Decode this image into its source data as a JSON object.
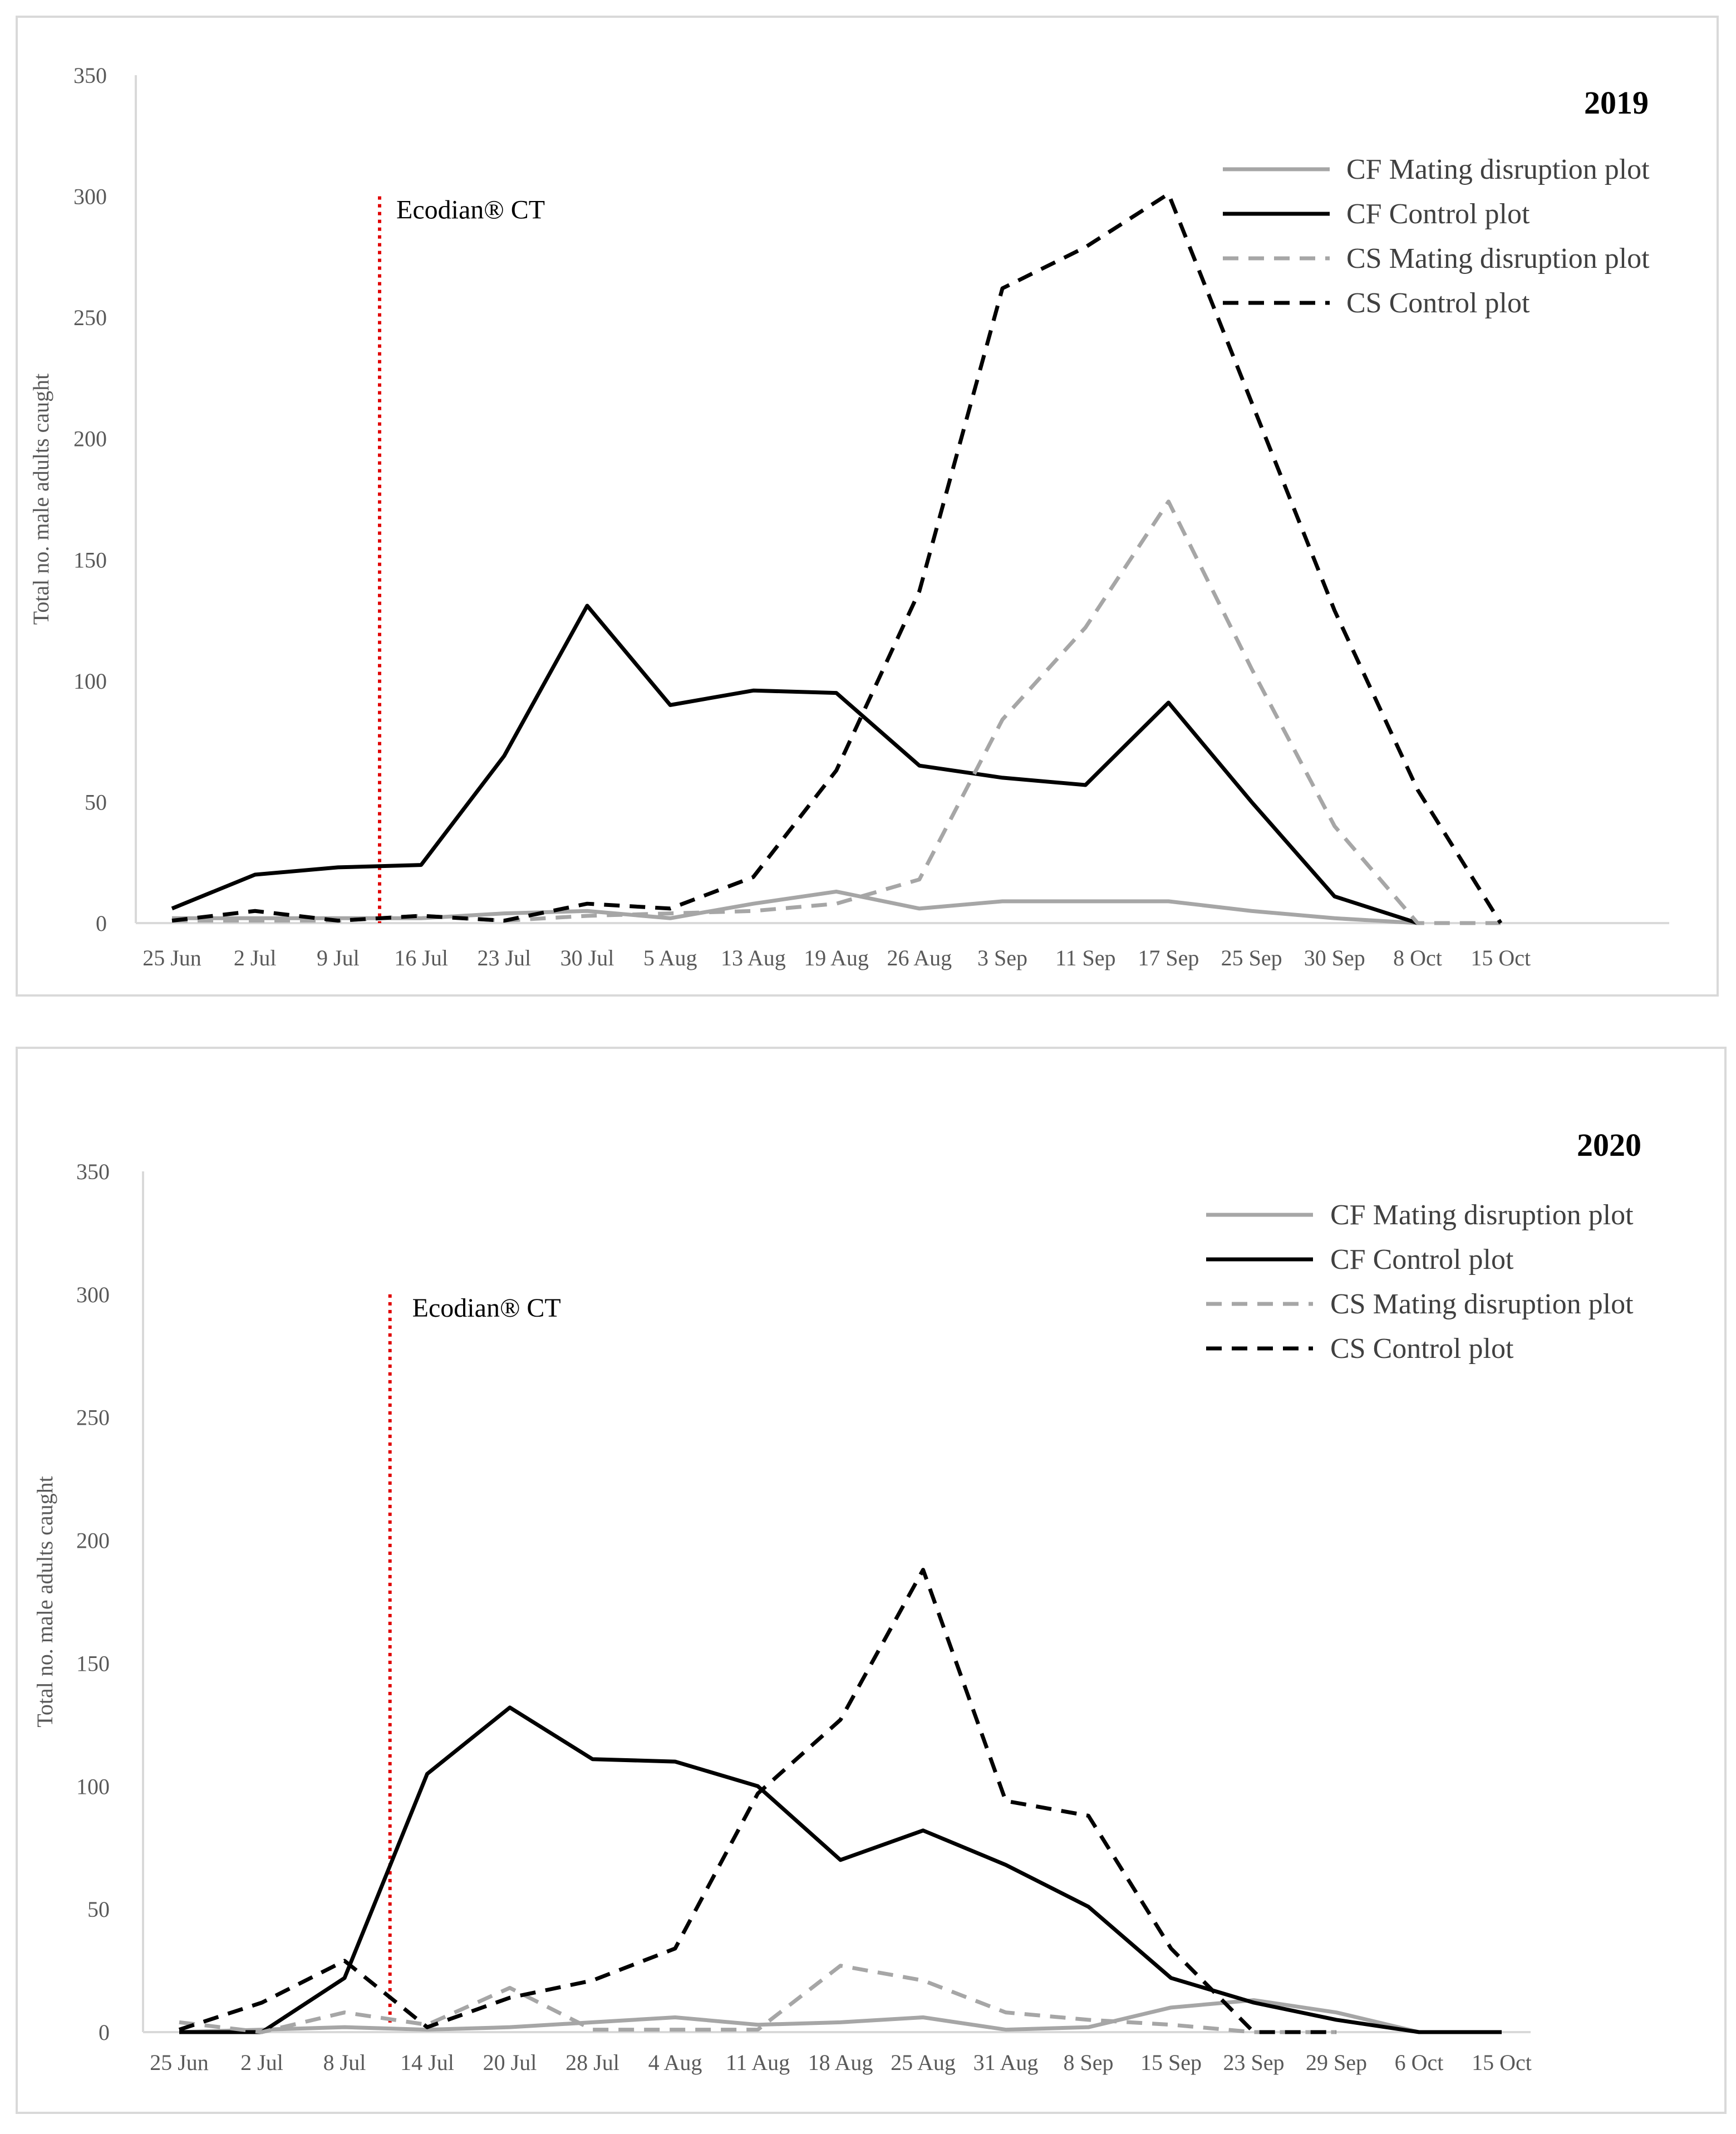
{
  "colors": {
    "cf_md": "#a6a6a6",
    "cf_ctrl": "#000000",
    "cs_md": "#a6a6a6",
    "cs_ctrl": "#000000",
    "marker": "#e00000",
    "axis": "#d9d9d9"
  },
  "chart_data": [
    {
      "type": "line",
      "title": "2019",
      "xlabel": "",
      "ylabel": "Total no. male adults caught",
      "ylim": [
        0,
        350
      ],
      "yticks": [
        "0",
        "50",
        "100",
        "150",
        "200",
        "250",
        "300",
        "350"
      ],
      "categories": [
        "25 Jun",
        "2 Jul",
        "9 Jul",
        "16 Jul",
        "23 Jul",
        "30 Jul",
        "5 Aug",
        "13 Aug",
        "19 Aug",
        "26 Aug",
        "3 Sep",
        "11 Sep",
        "17 Sep",
        "25 Sep",
        "30 Sep",
        "8 Oct",
        "15 Oct"
      ],
      "annotation": {
        "label": "Ecodian® CT",
        "x_position": 2.5,
        "y_top": 300
      },
      "legend": "top-right",
      "series": [
        {
          "name": "CF Mating disruption plot",
          "style": "solid-gray",
          "values": [
            2,
            2,
            2,
            2,
            4,
            5,
            2,
            8,
            13,
            6,
            9,
            9,
            9,
            5,
            2,
            0,
            null
          ]
        },
        {
          "name": "CF Control plot",
          "style": "solid-black",
          "values": [
            6,
            20,
            23,
            24,
            69,
            131,
            90,
            96,
            95,
            65,
            60,
            57,
            91,
            50,
            11,
            0,
            null
          ]
        },
        {
          "name": "CS Mating disruption plot",
          "style": "dashed-gray",
          "values": [
            1,
            1,
            1,
            3,
            1,
            3,
            4,
            5,
            8,
            18,
            84,
            122,
            174,
            105,
            40,
            0,
            0
          ]
        },
        {
          "name": "CS Control plot",
          "style": "dashed-black",
          "values": [
            1,
            5,
            1,
            3,
            1,
            8,
            6,
            19,
            63,
            137,
            262,
            279,
            301,
            215,
            129,
            55,
            0
          ]
        }
      ]
    },
    {
      "type": "line",
      "title": "2020",
      "xlabel": "",
      "ylabel": "Total no. male adults caught",
      "ylim": [
        0,
        350
      ],
      "yticks": [
        "0",
        "50",
        "100",
        "150",
        "200",
        "250",
        "300",
        "350"
      ],
      "categories": [
        "25 Jun",
        "2 Jul",
        "8 Jul",
        "14 Jul",
        "20 Jul",
        "28 Jul",
        "4 Aug",
        "11 Aug",
        "18 Aug",
        "25 Aug",
        "31 Aug",
        "8 Sep",
        "15 Sep",
        "23 Sep",
        "29 Sep",
        "6 Oct",
        "15 Oct"
      ],
      "annotation": {
        "label": "Ecodian® CT",
        "x_position": 2.55,
        "y_top": 300
      },
      "legend": "top-right",
      "series": [
        {
          "name": "CF Mating disruption plot",
          "style": "solid-gray",
          "values": [
            0,
            1,
            2,
            1,
            2,
            4,
            6,
            3,
            4,
            6,
            1,
            2,
            10,
            13,
            8,
            0,
            0
          ]
        },
        {
          "name": "CF Control plot",
          "style": "solid-black",
          "values": [
            0,
            0,
            22,
            105,
            132,
            111,
            110,
            100,
            70,
            82,
            68,
            51,
            22,
            12,
            5,
            0,
            0
          ]
        },
        {
          "name": "CS Mating disruption plot",
          "style": "dashed-gray",
          "values": [
            4,
            0,
            8,
            3,
            18,
            1,
            1,
            1,
            27,
            21,
            8,
            5,
            3,
            0,
            0,
            null,
            null
          ]
        },
        {
          "name": "CS Control plot",
          "style": "dashed-black",
          "values": [
            1,
            12,
            29,
            2,
            14,
            21,
            34,
            97,
            127,
            188,
            94,
            88,
            34,
            0,
            0,
            null,
            null
          ]
        }
      ]
    }
  ]
}
